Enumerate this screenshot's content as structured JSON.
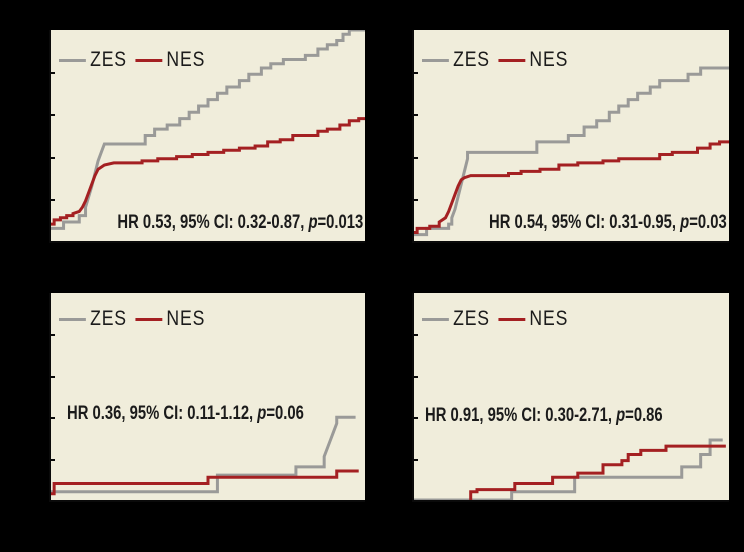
{
  "colors": {
    "background": "#000000",
    "plot_bg": "#f0eddb",
    "axis": "#0a0a0a",
    "zes": "#9a9a98",
    "nes": "#a42022",
    "text": "#1b1b1b"
  },
  "chart_data": [
    {
      "type": "line",
      "subtype": "kaplan-meier-step",
      "position": "top-left",
      "legend": {
        "zes": "ZES",
        "nes": "NES"
      },
      "annotation": {
        "prefix": "HR 0.53, 95% CI: 0.32-0.87, ",
        "p": "p",
        "suffix": "=0.013"
      },
      "axes_note": "axis labels not visible (black on black background); point units are percent of plot area, y measured up from bottom axis",
      "series": [
        {
          "name": "ZES",
          "color_key": "zes",
          "points": [
            [
              0,
              6
            ],
            [
              4,
              6
            ],
            [
              4,
              9
            ],
            [
              9,
              9
            ],
            [
              9,
              12
            ],
            [
              11,
              12
            ],
            [
              11,
              16
            ],
            [
              12,
              21
            ],
            [
              13,
              26
            ],
            [
              14,
              32
            ],
            [
              15,
              38
            ],
            [
              16,
              42
            ],
            [
              17,
              46
            ],
            [
              30,
              46
            ],
            [
              30,
              50
            ],
            [
              33,
              50
            ],
            [
              33,
              53
            ],
            [
              37,
              53
            ],
            [
              37,
              55
            ],
            [
              41,
              55
            ],
            [
              41,
              58
            ],
            [
              44,
              58
            ],
            [
              44,
              61
            ],
            [
              47,
              61
            ],
            [
              47,
              64
            ],
            [
              50,
              64
            ],
            [
              50,
              67
            ],
            [
              53,
              67
            ],
            [
              53,
              70
            ],
            [
              56,
              70
            ],
            [
              56,
              73
            ],
            [
              60,
              73
            ],
            [
              60,
              76
            ],
            [
              63,
              76
            ],
            [
              63,
              79
            ],
            [
              67,
              79
            ],
            [
              67,
              82
            ],
            [
              70,
              82
            ],
            [
              70,
              84
            ],
            [
              74,
              84
            ],
            [
              74,
              86
            ],
            [
              81,
              86
            ],
            [
              81,
              88
            ],
            [
              85,
              88
            ],
            [
              85,
              91
            ],
            [
              88,
              91
            ],
            [
              88,
              93
            ],
            [
              91,
              93
            ],
            [
              91,
              95
            ],
            [
              93,
              95
            ],
            [
              93,
              98
            ],
            [
              95,
              98
            ],
            [
              95,
              100
            ],
            [
              100,
              100
            ]
          ]
        },
        {
          "name": "NES",
          "color_key": "nes",
          "points": [
            [
              0,
              8
            ],
            [
              1,
              8
            ],
            [
              1,
              10
            ],
            [
              3,
              10
            ],
            [
              3,
              11
            ],
            [
              5,
              11
            ],
            [
              5,
              12
            ],
            [
              7,
              12
            ],
            [
              7,
              13
            ],
            [
              9,
              14
            ],
            [
              10,
              16
            ],
            [
              11,
              19
            ],
            [
              12,
              23
            ],
            [
              13,
              27
            ],
            [
              14,
              31
            ],
            [
              15,
              34
            ],
            [
              17,
              36
            ],
            [
              20,
              37
            ],
            [
              29,
              37
            ],
            [
              29,
              38
            ],
            [
              34,
              38
            ],
            [
              34,
              39
            ],
            [
              40,
              39
            ],
            [
              40,
              40
            ],
            [
              45,
              40
            ],
            [
              45,
              41
            ],
            [
              50,
              41
            ],
            [
              50,
              42
            ],
            [
              55,
              42
            ],
            [
              55,
              43
            ],
            [
              60,
              43
            ],
            [
              60,
              44
            ],
            [
              65,
              44
            ],
            [
              65,
              45
            ],
            [
              69,
              45
            ],
            [
              69,
              47
            ],
            [
              73,
              47
            ],
            [
              73,
              48
            ],
            [
              77,
              48
            ],
            [
              77,
              50
            ],
            [
              85,
              50
            ],
            [
              85,
              52
            ],
            [
              88,
              52
            ],
            [
              88,
              53
            ],
            [
              92,
              53
            ],
            [
              92,
              55
            ],
            [
              95,
              55
            ],
            [
              95,
              57
            ],
            [
              98,
              57
            ],
            [
              98,
              58
            ],
            [
              100,
              58
            ]
          ]
        }
      ]
    },
    {
      "type": "line",
      "subtype": "kaplan-meier-step",
      "position": "top-right",
      "legend": {
        "zes": "ZES",
        "nes": "NES"
      },
      "annotation": {
        "prefix": "HR 0.54, 95% CI: 0.31-0.95, ",
        "p": "p",
        "suffix": "=0.03"
      },
      "axes_note": "axis labels not visible; point units are percent of plot area",
      "series": [
        {
          "name": "ZES",
          "color_key": "zes",
          "points": [
            [
              0,
              3
            ],
            [
              4,
              3
            ],
            [
              4,
              6
            ],
            [
              11,
              6
            ],
            [
              11,
              8
            ],
            [
              12,
              8
            ],
            [
              12,
              11
            ],
            [
              13,
              15
            ],
            [
              14,
              21
            ],
            [
              15,
              27
            ],
            [
              16,
              33
            ],
            [
              17,
              39
            ],
            [
              17,
              42
            ],
            [
              39,
              42
            ],
            [
              39,
              47
            ],
            [
              49,
              47
            ],
            [
              49,
              50
            ],
            [
              54,
              50
            ],
            [
              54,
              54
            ],
            [
              58,
              54
            ],
            [
              58,
              57
            ],
            [
              62,
              57
            ],
            [
              62,
              61
            ],
            [
              65,
              61
            ],
            [
              65,
              64
            ],
            [
              68,
              64
            ],
            [
              68,
              67
            ],
            [
              71,
              67
            ],
            [
              71,
              70
            ],
            [
              75,
              70
            ],
            [
              75,
              73
            ],
            [
              78,
              73
            ],
            [
              78,
              76
            ],
            [
              82,
              76
            ],
            [
              87,
              76
            ],
            [
              87,
              79
            ],
            [
              91,
              79
            ],
            [
              91,
              82
            ],
            [
              100,
              82
            ]
          ]
        },
        {
          "name": "NES",
          "color_key": "nes",
          "points": [
            [
              0,
              4
            ],
            [
              1,
              4
            ],
            [
              1,
              6
            ],
            [
              5,
              6
            ],
            [
              5,
              7
            ],
            [
              8,
              7
            ],
            [
              8,
              9
            ],
            [
              10,
              11
            ],
            [
              11,
              14
            ],
            [
              12,
              18
            ],
            [
              13,
              22
            ],
            [
              14,
              26
            ],
            [
              15,
              29
            ],
            [
              16,
              30
            ],
            [
              18,
              31
            ],
            [
              30,
              31
            ],
            [
              30,
              32
            ],
            [
              34,
              32
            ],
            [
              34,
              33
            ],
            [
              40,
              33
            ],
            [
              40,
              34
            ],
            [
              46,
              34
            ],
            [
              46,
              36
            ],
            [
              52,
              36
            ],
            [
              52,
              37
            ],
            [
              60,
              37
            ],
            [
              60,
              38
            ],
            [
              65,
              38
            ],
            [
              65,
              39
            ],
            [
              78,
              39
            ],
            [
              78,
              41
            ],
            [
              82,
              41
            ],
            [
              82,
              42
            ],
            [
              90,
              42
            ],
            [
              90,
              44
            ],
            [
              94,
              44
            ],
            [
              94,
              46
            ],
            [
              97,
              46
            ],
            [
              97,
              47
            ],
            [
              100,
              47
            ]
          ]
        }
      ]
    },
    {
      "type": "line",
      "subtype": "kaplan-meier-step",
      "position": "bottom-left",
      "legend": {
        "zes": "ZES",
        "nes": "NES"
      },
      "annotation": {
        "prefix": "HR 0.36, 95% CI: 0.11-1.12, ",
        "p": "p",
        "suffix": "=0.06"
      },
      "axes_note": "axis labels not visible; point units are percent of plot area",
      "series": [
        {
          "name": "ZES",
          "color_key": "zes",
          "points": [
            [
              0,
              4
            ],
            [
              53,
              4
            ],
            [
              53,
              12
            ],
            [
              78,
              12
            ],
            [
              78,
              16
            ],
            [
              87,
              16
            ],
            [
              87,
              21
            ],
            [
              88,
              25
            ],
            [
              89,
              29
            ],
            [
              90,
              33
            ],
            [
              91,
              37
            ],
            [
              91,
              40
            ],
            [
              97,
              40
            ]
          ]
        },
        {
          "name": "NES",
          "color_key": "nes",
          "points": [
            [
              0,
              3
            ],
            [
              1,
              3
            ],
            [
              1,
              8
            ],
            [
              50,
              8
            ],
            [
              50,
              11
            ],
            [
              91,
              11
            ],
            [
              91,
              14
            ],
            [
              98,
              14
            ]
          ]
        }
      ]
    },
    {
      "type": "line",
      "subtype": "kaplan-meier-step",
      "position": "bottom-right",
      "legend": {
        "zes": "ZES",
        "nes": "NES"
      },
      "annotation": {
        "prefix": "HR 0.91, 95% CI: 0.30-2.71, ",
        "p": "p",
        "suffix": "=0.86"
      },
      "axes_note": "axis labels not visible; point units are percent of plot area",
      "series": [
        {
          "name": "ZES",
          "color_key": "zes",
          "points": [
            [
              0,
              0
            ],
            [
              31,
              0
            ],
            [
              31,
              4
            ],
            [
              51,
              4
            ],
            [
              51,
              11
            ],
            [
              85,
              11
            ],
            [
              85,
              16
            ],
            [
              91,
              16
            ],
            [
              91,
              22
            ],
            [
              94,
              22
            ],
            [
              94,
              29
            ],
            [
              98,
              29
            ]
          ]
        },
        {
          "name": "NES",
          "color_key": "nes",
          "points": [
            [
              18,
              0
            ],
            [
              18,
              4
            ],
            [
              20,
              4
            ],
            [
              20,
              5
            ],
            [
              32,
              5
            ],
            [
              32,
              8
            ],
            [
              44,
              8
            ],
            [
              44,
              11
            ],
            [
              52,
              11
            ],
            [
              52,
              13
            ],
            [
              60,
              13
            ],
            [
              60,
              17
            ],
            [
              66,
              17
            ],
            [
              66,
              19
            ],
            [
              68,
              19
            ],
            [
              68,
              22
            ],
            [
              72,
              22
            ],
            [
              72,
              24
            ],
            [
              80,
              24
            ],
            [
              80,
              26
            ],
            [
              99,
              26
            ]
          ]
        }
      ]
    }
  ]
}
